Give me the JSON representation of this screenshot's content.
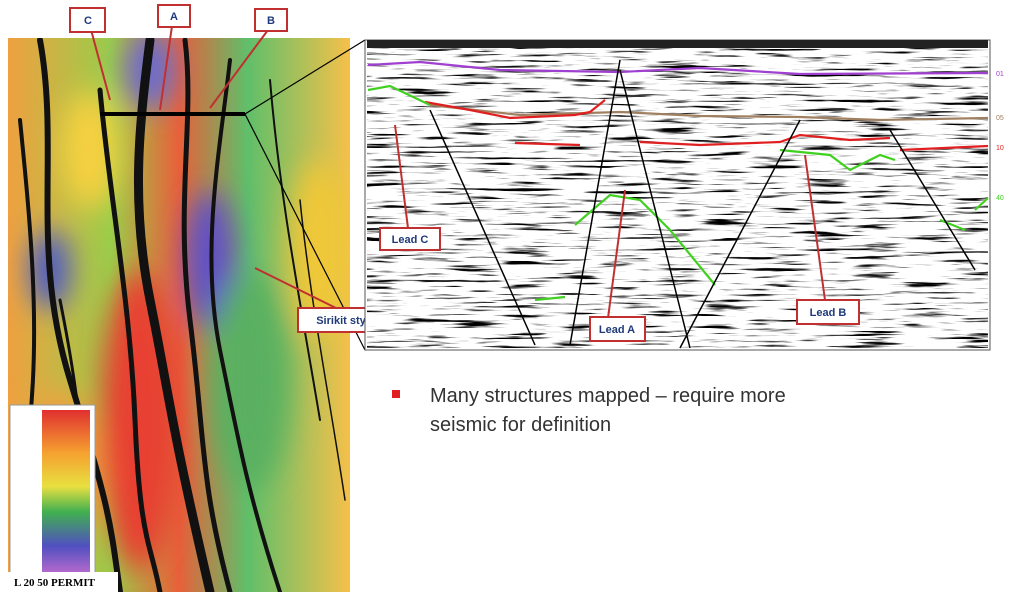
{
  "map": {
    "labels": [
      "C",
      "A",
      "B"
    ],
    "permit": "L 20 50 PERMIT",
    "callout": "Sirikit style structures"
  },
  "seismic": {
    "horizons": [
      "01",
      "05",
      "10",
      "40"
    ],
    "leads": [
      "Lead C",
      "Lead A",
      "Lead B"
    ]
  },
  "bullet": {
    "lines": [
      "Many structures mapped – require more",
      "seismic for definition"
    ]
  }
}
